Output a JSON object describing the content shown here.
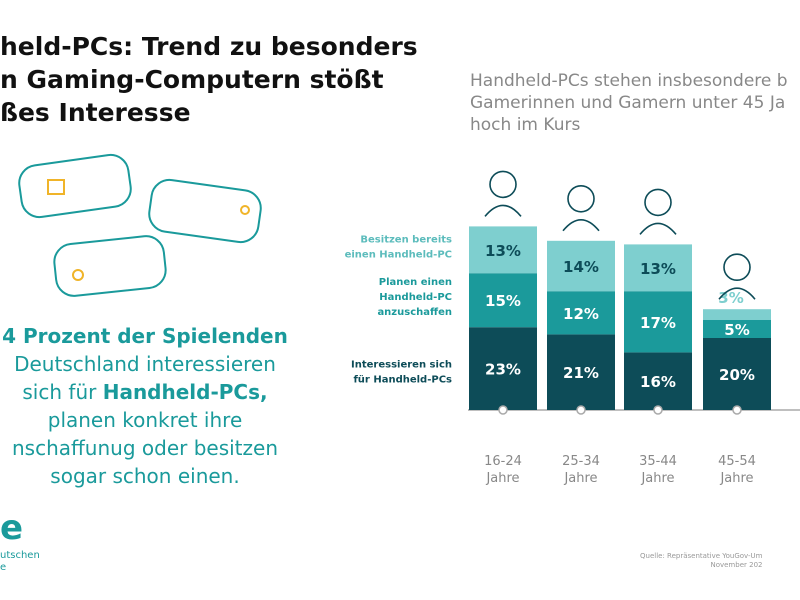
{
  "header": {
    "title_lines": [
      "held-PCs: Trend zu besonders",
      "n Gaming-Computern stößt",
      "ßes Interesse"
    ]
  },
  "intro": {
    "line1": "4 Prozent der Spielenden",
    "line2": "Deutschland interessieren",
    "line3a": "sich für",
    "line3b": "Handheld-PCs,",
    "line4": "planen konkret ihre",
    "line5": "nschaffunug oder besitzen",
    "line6": "sogar schon einen."
  },
  "logo": {
    "mark": "e",
    "line1": "utschen",
    "line2": "e"
  },
  "source": {
    "line1": "Quelle: Repräsentative YouGov-Um",
    "line2": "November 202"
  },
  "chart_data": {
    "type": "stacked-bar",
    "subtitle_lines": [
      "Handheld-PCs stehen insbesondere b",
      "Gamerinnen und Gamern unter 45 Ja",
      "hoch im Kurs"
    ],
    "categories": [
      [
        "16-24",
        "Jahre"
      ],
      [
        "25-34",
        "Jahre"
      ],
      [
        "35-44",
        "Jahre"
      ],
      [
        "45-54",
        "Jahre"
      ]
    ],
    "series": [
      {
        "name": [
          "Interessieren sich",
          "für Handheld-PCs"
        ],
        "color": "#0d4c58",
        "values": [
          23,
          21,
          16,
          20
        ],
        "value_labels": [
          "23%",
          "21%",
          "16%",
          "20%"
        ]
      },
      {
        "name": [
          "Planen einen",
          "Handheld-PC",
          "anzuschaffen"
        ],
        "color": "#1b9a9b",
        "values": [
          15,
          12,
          17,
          5
        ],
        "value_labels": [
          "15%",
          "12%",
          "17%",
          "5%"
        ]
      },
      {
        "name": [
          "Besitzen bereits",
          "einen Handheld-PC"
        ],
        "color": "#7ecfcf",
        "values": [
          13,
          14,
          13,
          3
        ],
        "value_labels": [
          "13%",
          "14%",
          "13%",
          "3%"
        ]
      }
    ]
  }
}
